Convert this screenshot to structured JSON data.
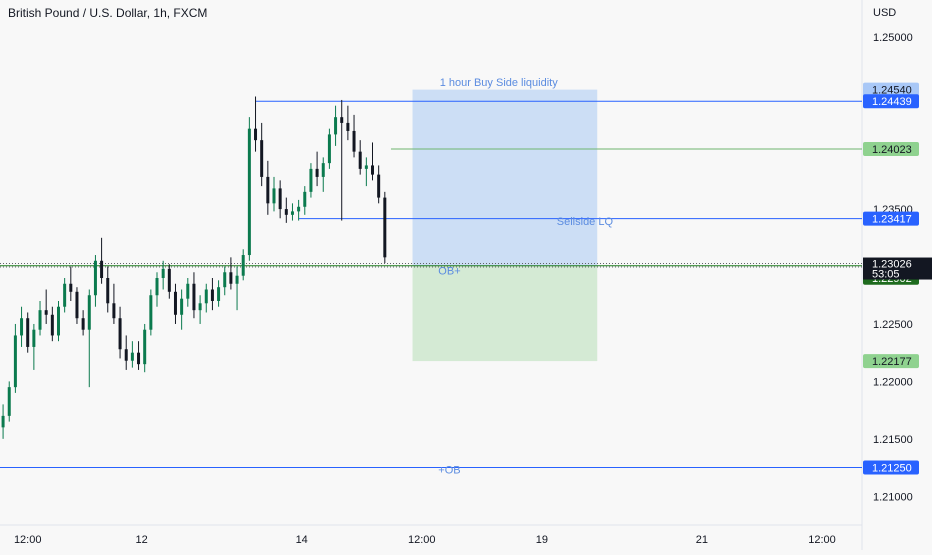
{
  "chart_data": {
    "type": "candlestick",
    "title": "British Pound / U.S. Dollar, 1h, FXCM",
    "currency": "USD",
    "y_range": [
      1.2075,
      1.2532
    ],
    "y_ticks": [
      "1.25000",
      "1.23500",
      "1.22500",
      "1.22000",
      "1.21500",
      "1.21000"
    ],
    "x_ticks": [
      "12:00",
      "12",
      "14",
      "12:00",
      "19",
      "21",
      "12:00"
    ],
    "x_range": [
      0,
      140
    ],
    "x_tick_positions": [
      4.5,
      23,
      49,
      68.5,
      88,
      114,
      133.5
    ],
    "candles": [
      [
        1.216,
        1.218,
        1.215,
        1.217
      ],
      [
        1.217,
        1.22,
        1.2165,
        1.2195
      ],
      [
        1.2195,
        1.225,
        1.219,
        1.224
      ],
      [
        1.224,
        1.2265,
        1.223,
        1.2255
      ],
      [
        1.2255,
        1.226,
        1.2225,
        1.223
      ],
      [
        1.223,
        1.225,
        1.221,
        1.2245
      ],
      [
        1.2245,
        1.227,
        1.224,
        1.2262
      ],
      [
        1.2262,
        1.228,
        1.225,
        1.2258
      ],
      [
        1.2258,
        1.2265,
        1.2235,
        1.224
      ],
      [
        1.224,
        1.227,
        1.2235,
        1.2265
      ],
      [
        1.2265,
        1.229,
        1.226,
        1.2285
      ],
      [
        1.2285,
        1.23,
        1.227,
        1.2278
      ],
      [
        1.2278,
        1.2282,
        1.225,
        1.2255
      ],
      [
        1.2255,
        1.2262,
        1.224,
        1.2245
      ],
      [
        1.2245,
        1.228,
        1.2195,
        1.2275
      ],
      [
        1.2275,
        1.231,
        1.2265,
        1.2305
      ],
      [
        1.2305,
        1.2325,
        1.2285,
        1.229
      ],
      [
        1.229,
        1.23,
        1.226,
        1.2268
      ],
      [
        1.2268,
        1.2285,
        1.225,
        1.2255
      ],
      [
        1.2255,
        1.2265,
        1.222,
        1.2228
      ],
      [
        1.2228,
        1.224,
        1.221,
        1.2218
      ],
      [
        1.2218,
        1.2235,
        1.2212,
        1.2225
      ],
      [
        1.2225,
        1.2235,
        1.221,
        1.2215
      ],
      [
        1.2215,
        1.225,
        1.2208,
        1.2245
      ],
      [
        1.2245,
        1.228,
        1.224,
        1.2275
      ],
      [
        1.2275,
        1.2295,
        1.2265,
        1.229
      ],
      [
        1.229,
        1.2305,
        1.228,
        1.2298
      ],
      [
        1.2298,
        1.2302,
        1.2272,
        1.2278
      ],
      [
        1.2278,
        1.2285,
        1.225,
        1.2258
      ],
      [
        1.2258,
        1.228,
        1.2245,
        1.2272
      ],
      [
        1.2272,
        1.229,
        1.2265,
        1.2285
      ],
      [
        1.2285,
        1.2295,
        1.2255,
        1.2262
      ],
      [
        1.2262,
        1.2275,
        1.225,
        1.2268
      ],
      [
        1.2268,
        1.2285,
        1.226,
        1.228
      ],
      [
        1.228,
        1.229,
        1.2262,
        1.227
      ],
      [
        1.227,
        1.2288,
        1.2265,
        1.2282
      ],
      [
        1.2282,
        1.23,
        1.2275,
        1.2295
      ],
      [
        1.2295,
        1.2308,
        1.228,
        1.2285
      ],
      [
        1.2285,
        1.23,
        1.2262,
        1.2292
      ],
      [
        1.2292,
        1.2315,
        1.2288,
        1.231
      ],
      [
        1.231,
        1.243,
        1.2305,
        1.242
      ],
      [
        1.242,
        1.2448,
        1.24,
        1.241
      ],
      [
        1.241,
        1.2425,
        1.237,
        1.2378
      ],
      [
        1.2378,
        1.2392,
        1.2345,
        1.2355
      ],
      [
        1.2355,
        1.2378,
        1.2348,
        1.2368
      ],
      [
        1.2368,
        1.2375,
        1.2342,
        1.235
      ],
      [
        1.235,
        1.236,
        1.2338,
        1.2345
      ],
      [
        1.2345,
        1.2355,
        1.234,
        1.2348
      ],
      [
        1.2348,
        1.2358,
        1.234,
        1.2352
      ],
      [
        1.2352,
        1.237,
        1.2345,
        1.2365
      ],
      [
        1.2365,
        1.239,
        1.236,
        1.2385
      ],
      [
        1.2385,
        1.24,
        1.237,
        1.2378
      ],
      [
        1.2378,
        1.2395,
        1.2365,
        1.239
      ],
      [
        1.239,
        1.242,
        1.2385,
        1.2415
      ],
      [
        1.2415,
        1.244,
        1.2405,
        1.243
      ],
      [
        1.243,
        1.2445,
        1.234,
        1.2425
      ],
      [
        1.2425,
        1.244,
        1.241,
        1.2418
      ],
      [
        1.2418,
        1.2432,
        1.2395,
        1.24
      ],
      [
        1.24,
        1.241,
        1.238,
        1.2385
      ],
      [
        1.2385,
        1.2395,
        1.237,
        1.2388
      ],
      [
        1.2388,
        1.2408,
        1.2375,
        1.238
      ],
      [
        1.238,
        1.2388,
        1.2355,
        1.236
      ],
      [
        1.236,
        1.2365,
        1.2303,
        1.2308
      ]
    ],
    "zones": [
      {
        "name": "buy-zone",
        "x0": 67.0,
        "x1": 97.0,
        "y0": 1.23006,
        "y1": 1.2454,
        "color": "#b9d3f3"
      },
      {
        "name": "sell-zone",
        "x0": 67.0,
        "x1": 97.0,
        "y0": 1.22177,
        "y1": 1.23006,
        "color": "#c4e4c4"
      }
    ],
    "levels": [
      {
        "name": "buy-side-liquidity",
        "price": 1.24439,
        "x0": 41.5,
        "color": "#2962ff"
      },
      {
        "name": "level-1.24023",
        "price": 1.24023,
        "x0": 63.5,
        "color": "#6eb56e"
      },
      {
        "name": "sellside-lq",
        "price": 1.23417,
        "x0": 48.5,
        "color": "#2962ff"
      },
      {
        "name": "ob-plus",
        "price": 1.23007,
        "x0": 0,
        "color": "#1e7b1e"
      },
      {
        "name": "plus-ob",
        "price": 1.2125,
        "x0": 0,
        "color": "#2962ff"
      }
    ],
    "dotted_levels": [
      1.23026,
      1.22996
    ],
    "annotations": [
      {
        "name": "label-buy-side-liquidity",
        "text": "1 hour Buy Side liquidity",
        "x": 81,
        "y": 1.2457,
        "color": "#5b8ce0"
      },
      {
        "name": "label-sellside-lq",
        "text": "Sellside LQ",
        "x": 95,
        "y": 1.2336,
        "color": "#5b8ce0"
      },
      {
        "name": "label-ob-plus",
        "text": "OB+",
        "x": 73,
        "y": 1.2293,
        "color": "#5b8ce0"
      },
      {
        "name": "label-plus-ob",
        "text": "+OB",
        "x": 73,
        "y": 1.212,
        "color": "#5b8ce0"
      }
    ],
    "price_labels": [
      {
        "name": "price-label-1.24540",
        "text": "1.24540",
        "price": 1.2454,
        "bg": "#a9c8f7",
        "fg": "#131722"
      },
      {
        "name": "price-label-1.24439",
        "text": "1.24439",
        "price": 1.24439,
        "bg": "#2962ff",
        "fg": "#ffffff"
      },
      {
        "name": "price-label-1.24023",
        "text": "1.24023",
        "price": 1.24023,
        "bg": "#8fd28f",
        "fg": "#131722"
      },
      {
        "name": "price-label-1.23417",
        "text": "1.23417",
        "price": 1.23417,
        "bg": "#2962ff",
        "fg": "#ffffff"
      },
      {
        "name": "price-label-1.23007",
        "text": "1.23007",
        "price": 1.23007,
        "bg": "#1e6b1e",
        "fg": "#ffffff"
      },
      {
        "name": "price-label-1.22996",
        "text": "1.22996",
        "price": 1.22996,
        "bg": "#9aa0a6",
        "fg": "#131722"
      },
      {
        "name": "price-label-1.22902",
        "text": "1.22902",
        "price": 1.22902,
        "bg": "#1e6b1e",
        "fg": "#ffffff"
      },
      {
        "name": "price-label-1.22177",
        "text": "1.22177",
        "price": 1.22177,
        "bg": "#8fd28f",
        "fg": "#131722"
      },
      {
        "name": "price-label-1.21250",
        "text": "1.21250",
        "price": 1.2125,
        "bg": "#2962ff",
        "fg": "#ffffff"
      }
    ],
    "current_price": {
      "price": "1.23026",
      "countdown": "53:05",
      "value": 1.23026,
      "bg": "#131722",
      "fg": "#ffffff"
    },
    "up_color": "#0b7a4e",
    "down_color": "#131722"
  }
}
